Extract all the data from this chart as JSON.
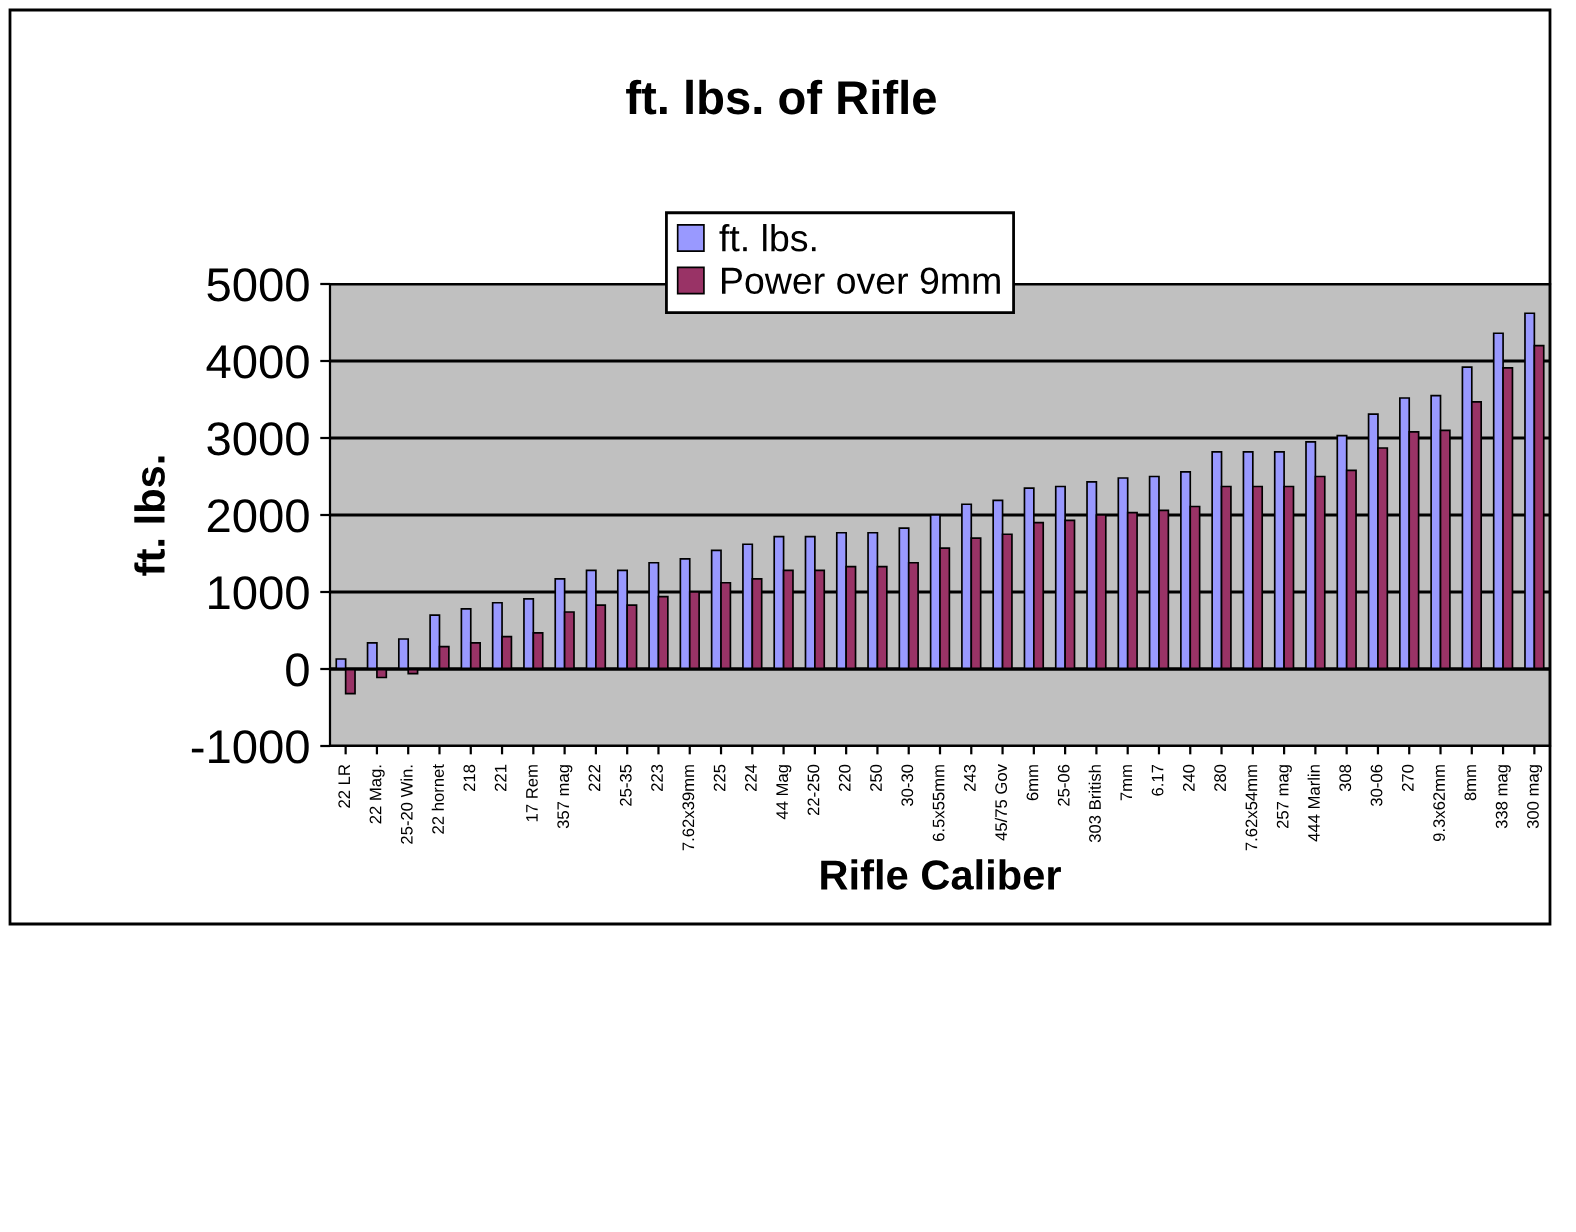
{
  "chart_data": {
    "type": "bar",
    "title": "ft. lbs. of Rifle",
    "xlabel": "Rifle Caliber",
    "ylabel": "ft. lbs.",
    "categories": [
      "22 LR",
      "22 Mag.",
      "25-20 Win.",
      "22 hornet",
      "218",
      "221",
      "17 Rem",
      "357 mag",
      "222",
      "25-35",
      "223",
      "7.62x39mm",
      "225",
      "224",
      "44 Mag",
      "22-250",
      "220",
      "250",
      "30-30",
      "6.5x55mm",
      "243",
      "45/75 Gov",
      "6mm",
      "25-06",
      "303 British",
      "7mm",
      "6.17",
      "240",
      "280",
      "7.62x54mm",
      "257 mag",
      "444 Marlin",
      "308",
      "30-06",
      "270",
      "9.3x62mm",
      "8mm",
      "338 mag",
      "300 mag"
    ],
    "series": [
      {
        "name": "ft. lbs.",
        "color": "#9999ff",
        "values": [
          130,
          340,
          390,
          700,
          780,
          860,
          910,
          1170,
          1280,
          1280,
          1380,
          1430,
          1540,
          1620,
          1720,
          1720,
          1770,
          1770,
          1830,
          2000,
          2140,
          2190,
          2350,
          2370,
          2430,
          2480,
          2500,
          2560,
          2820,
          2820,
          2820,
          2950,
          3030,
          3310,
          3520,
          3550,
          3920,
          4360,
          4620
        ]
      },
      {
        "name": "Power over 9mm",
        "color": "#993366",
        "values": [
          -320,
          -110,
          -60,
          290,
          340,
          420,
          470,
          740,
          830,
          830,
          940,
          1000,
          1120,
          1170,
          1280,
          1280,
          1330,
          1330,
          1380,
          1570,
          1700,
          1750,
          1900,
          1930,
          2000,
          2030,
          2060,
          2110,
          2370,
          2370,
          2370,
          2500,
          2580,
          2870,
          3080,
          3100,
          3470,
          3910,
          4200
        ]
      }
    ],
    "ylim": [
      -1000,
      5000
    ],
    "yticks": [
      -1000,
      0,
      1000,
      2000,
      3000,
      4000,
      5000
    ],
    "grid": "y",
    "legend": "top"
  }
}
